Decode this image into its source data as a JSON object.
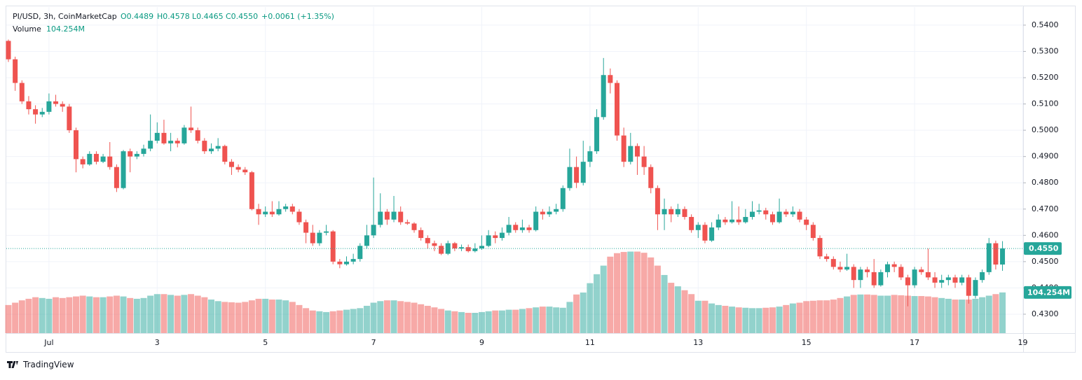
{
  "chart_data": {
    "type": "candlestick",
    "symbol": "PI/USD, 3h, CoinMarketCap",
    "legend_open": "O0.4489",
    "legend_high": "H0.4578",
    "legend_low": "L0.4465",
    "legend_close": "C0.4550",
    "legend_change": "+0.0061 (+1.35%)",
    "volume_title": "Volume",
    "volume_label": "104.254M",
    "price_label": "0.4550",
    "brand": "TradingView",
    "up_color": "#26a69a",
    "down_color": "#ef5350",
    "ylim": [
      0.4228,
      0.5469
    ],
    "yticks": [
      {
        "value": 0.43,
        "label": "0.4300"
      },
      {
        "value": 0.44,
        "label": "0.4400"
      },
      {
        "value": 0.45,
        "label": "0.4500"
      },
      {
        "value": 0.46,
        "label": "0.4600"
      },
      {
        "value": 0.47,
        "label": "0.4700"
      },
      {
        "value": 0.48,
        "label": "0.4800"
      },
      {
        "value": 0.49,
        "label": "0.4900"
      },
      {
        "value": 0.5,
        "label": "0.5000"
      },
      {
        "value": 0.51,
        "label": "0.5100"
      },
      {
        "value": 0.52,
        "label": "0.5200"
      },
      {
        "value": 0.53,
        "label": "0.5300"
      },
      {
        "value": 0.54,
        "label": "0.5400"
      }
    ],
    "x_labels": [
      "Jul",
      "3",
      "5",
      "7",
      "9",
      "11",
      "13",
      "15",
      "17",
      "19"
    ],
    "grid": true,
    "ohlc": [
      [
        0.534,
        0.5345,
        0.526,
        0.527
      ],
      [
        0.527,
        0.528,
        0.515,
        0.518
      ],
      [
        0.518,
        0.519,
        0.51,
        0.511
      ],
      [
        0.511,
        0.513,
        0.506,
        0.508
      ],
      [
        0.508,
        0.5095,
        0.5025,
        0.506
      ],
      [
        0.506,
        0.5085,
        0.505,
        0.507
      ],
      [
        0.507,
        0.514,
        0.506,
        0.511
      ],
      [
        0.511,
        0.5135,
        0.509,
        0.51
      ],
      [
        0.51,
        0.511,
        0.507,
        0.509
      ],
      [
        0.509,
        0.51,
        0.499,
        0.5
      ],
      [
        0.5,
        0.501,
        0.484,
        0.489
      ],
      [
        0.489,
        0.49,
        0.4855,
        0.487
      ],
      [
        0.487,
        0.492,
        0.4865,
        0.491
      ],
      [
        0.491,
        0.492,
        0.487,
        0.488
      ],
      [
        0.488,
        0.491,
        0.4875,
        0.49
      ],
      [
        0.49,
        0.4955,
        0.485,
        0.486
      ],
      [
        0.486,
        0.487,
        0.4765,
        0.478
      ],
      [
        0.478,
        0.4925,
        0.4775,
        0.492
      ],
      [
        0.492,
        0.493,
        0.484,
        0.49
      ],
      [
        0.49,
        0.492,
        0.489,
        0.491
      ],
      [
        0.491,
        0.4945,
        0.49,
        0.493
      ],
      [
        0.493,
        0.506,
        0.492,
        0.496
      ],
      [
        0.496,
        0.503,
        0.495,
        0.499
      ],
      [
        0.499,
        0.504,
        0.4945,
        0.495
      ],
      [
        0.495,
        0.499,
        0.492,
        0.496
      ],
      [
        0.496,
        0.497,
        0.4935,
        0.495
      ],
      [
        0.495,
        0.502,
        0.4945,
        0.501
      ],
      [
        0.501,
        0.509,
        0.499,
        0.5
      ],
      [
        0.5,
        0.501,
        0.495,
        0.496
      ],
      [
        0.496,
        0.497,
        0.491,
        0.492
      ],
      [
        0.492,
        0.495,
        0.491,
        0.493
      ],
      [
        0.493,
        0.497,
        0.492,
        0.494
      ],
      [
        0.494,
        0.4945,
        0.487,
        0.488
      ],
      [
        0.488,
        0.489,
        0.483,
        0.486
      ],
      [
        0.486,
        0.487,
        0.484,
        0.485
      ],
      [
        0.485,
        0.486,
        0.483,
        0.484
      ],
      [
        0.484,
        0.4845,
        0.4695,
        0.47
      ],
      [
        0.47,
        0.472,
        0.464,
        0.468
      ],
      [
        0.468,
        0.471,
        0.467,
        0.469
      ],
      [
        0.469,
        0.473,
        0.467,
        0.468
      ],
      [
        0.468,
        0.473,
        0.4675,
        0.47
      ],
      [
        0.47,
        0.472,
        0.469,
        0.471
      ],
      [
        0.471,
        0.472,
        0.468,
        0.469
      ],
      [
        0.469,
        0.47,
        0.464,
        0.465
      ],
      [
        0.465,
        0.466,
        0.457,
        0.461
      ],
      [
        0.461,
        0.464,
        0.456,
        0.457
      ],
      [
        0.457,
        0.462,
        0.456,
        0.461
      ],
      [
        0.461,
        0.464,
        0.46,
        0.4615
      ],
      [
        0.4615,
        0.462,
        0.449,
        0.45
      ],
      [
        0.45,
        0.451,
        0.4475,
        0.449
      ],
      [
        0.449,
        0.452,
        0.4485,
        0.45
      ],
      [
        0.45,
        0.453,
        0.449,
        0.451
      ],
      [
        0.451,
        0.457,
        0.45,
        0.456
      ],
      [
        0.456,
        0.464,
        0.455,
        0.46
      ],
      [
        0.46,
        0.482,
        0.459,
        0.464
      ],
      [
        0.464,
        0.476,
        0.463,
        0.469
      ],
      [
        0.469,
        0.47,
        0.464,
        0.466
      ],
      [
        0.466,
        0.475,
        0.465,
        0.469
      ],
      [
        0.469,
        0.471,
        0.464,
        0.465
      ],
      [
        0.465,
        0.466,
        0.464,
        0.4645
      ],
      [
        0.4645,
        0.465,
        0.461,
        0.462
      ],
      [
        0.462,
        0.463,
        0.458,
        0.459
      ],
      [
        0.459,
        0.46,
        0.455,
        0.457
      ],
      [
        0.457,
        0.458,
        0.454,
        0.456
      ],
      [
        0.456,
        0.457,
        0.4525,
        0.453
      ],
      [
        0.453,
        0.458,
        0.4525,
        0.457
      ],
      [
        0.457,
        0.4575,
        0.454,
        0.455
      ],
      [
        0.455,
        0.4565,
        0.454,
        0.4555
      ],
      [
        0.4555,
        0.4565,
        0.4535,
        0.454
      ],
      [
        0.454,
        0.457,
        0.4535,
        0.455
      ],
      [
        0.455,
        0.46,
        0.4545,
        0.456
      ],
      [
        0.456,
        0.462,
        0.4555,
        0.46
      ],
      [
        0.46,
        0.4615,
        0.457,
        0.459
      ],
      [
        0.459,
        0.463,
        0.458,
        0.461
      ],
      [
        0.461,
        0.467,
        0.46,
        0.464
      ],
      [
        0.464,
        0.465,
        0.461,
        0.462
      ],
      [
        0.462,
        0.466,
        0.461,
        0.463
      ],
      [
        0.463,
        0.464,
        0.461,
        0.462
      ],
      [
        0.462,
        0.471,
        0.4615,
        0.469
      ],
      [
        0.469,
        0.47,
        0.466,
        0.468
      ],
      [
        0.468,
        0.471,
        0.467,
        0.469
      ],
      [
        0.469,
        0.472,
        0.468,
        0.47
      ],
      [
        0.47,
        0.479,
        0.469,
        0.478
      ],
      [
        0.478,
        0.493,
        0.477,
        0.486
      ],
      [
        0.486,
        0.49,
        0.478,
        0.48
      ],
      [
        0.48,
        0.496,
        0.479,
        0.488
      ],
      [
        0.488,
        0.494,
        0.486,
        0.492
      ],
      [
        0.492,
        0.508,
        0.491,
        0.505
      ],
      [
        0.505,
        0.5275,
        0.504,
        0.521
      ],
      [
        0.521,
        0.5235,
        0.514,
        0.518
      ],
      [
        0.518,
        0.519,
        0.496,
        0.498
      ],
      [
        0.498,
        0.501,
        0.486,
        0.488
      ],
      [
        0.488,
        0.499,
        0.487,
        0.494
      ],
      [
        0.494,
        0.495,
        0.483,
        0.49
      ],
      [
        0.49,
        0.494,
        0.483,
        0.486
      ],
      [
        0.486,
        0.487,
        0.476,
        0.478
      ],
      [
        0.478,
        0.479,
        0.462,
        0.468
      ],
      [
        0.468,
        0.474,
        0.462,
        0.47
      ],
      [
        0.47,
        0.471,
        0.465,
        0.468
      ],
      [
        0.468,
        0.472,
        0.467,
        0.47
      ],
      [
        0.47,
        0.471,
        0.466,
        0.467
      ],
      [
        0.467,
        0.468,
        0.461,
        0.462
      ],
      [
        0.462,
        0.465,
        0.459,
        0.464
      ],
      [
        0.464,
        0.465,
        0.457,
        0.458
      ],
      [
        0.458,
        0.465,
        0.4575,
        0.463
      ],
      [
        0.463,
        0.468,
        0.462,
        0.466
      ],
      [
        0.466,
        0.467,
        0.464,
        0.465
      ],
      [
        0.465,
        0.473,
        0.4645,
        0.466
      ],
      [
        0.466,
        0.471,
        0.464,
        0.465
      ],
      [
        0.465,
        0.47,
        0.4645,
        0.467
      ],
      [
        0.467,
        0.473,
        0.466,
        0.469
      ],
      [
        0.469,
        0.472,
        0.468,
        0.4695
      ],
      [
        0.4695,
        0.4705,
        0.466,
        0.468
      ],
      [
        0.468,
        0.469,
        0.464,
        0.465
      ],
      [
        0.465,
        0.474,
        0.4645,
        0.469
      ],
      [
        0.469,
        0.47,
        0.467,
        0.468
      ],
      [
        0.468,
        0.471,
        0.467,
        0.469
      ],
      [
        0.469,
        0.47,
        0.465,
        0.466
      ],
      [
        0.466,
        0.467,
        0.462,
        0.464
      ],
      [
        0.464,
        0.465,
        0.458,
        0.459
      ],
      [
        0.459,
        0.46,
        0.451,
        0.452
      ],
      [
        0.452,
        0.453,
        0.45,
        0.451
      ],
      [
        0.451,
        0.452,
        0.447,
        0.448
      ],
      [
        0.448,
        0.45,
        0.446,
        0.447
      ],
      [
        0.447,
        0.453,
        0.4465,
        0.448
      ],
      [
        0.448,
        0.449,
        0.44,
        0.443
      ],
      [
        0.443,
        0.448,
        0.44,
        0.447
      ],
      [
        0.447,
        0.448,
        0.444,
        0.446
      ],
      [
        0.446,
        0.451,
        0.44,
        0.441
      ],
      [
        0.441,
        0.447,
        0.4405,
        0.446
      ],
      [
        0.446,
        0.45,
        0.444,
        0.449
      ],
      [
        0.449,
        0.45,
        0.446,
        0.448
      ],
      [
        0.448,
        0.449,
        0.443,
        0.444
      ],
      [
        0.444,
        0.445,
        0.433,
        0.441
      ],
      [
        0.441,
        0.448,
        0.44,
        0.447
      ],
      [
        0.447,
        0.448,
        0.445,
        0.446
      ],
      [
        0.446,
        0.455,
        0.443,
        0.444
      ],
      [
        0.444,
        0.446,
        0.44,
        0.442
      ],
      [
        0.442,
        0.445,
        0.44,
        0.443
      ],
      [
        0.443,
        0.445,
        0.441,
        0.444
      ],
      [
        0.444,
        0.445,
        0.44,
        0.442
      ],
      [
        0.442,
        0.445,
        0.441,
        0.444
      ],
      [
        0.444,
        0.445,
        0.434,
        0.437
      ],
      [
        0.437,
        0.444,
        0.436,
        0.443
      ],
      [
        0.443,
        0.447,
        0.442,
        0.446
      ],
      [
        0.446,
        0.459,
        0.445,
        0.457
      ],
      [
        0.457,
        0.458,
        0.447,
        0.4489
      ],
      [
        0.4489,
        0.4578,
        0.4465,
        0.455
      ]
    ],
    "volume": [
      72,
      78,
      84,
      88,
      92,
      90,
      88,
      92,
      90,
      92,
      94,
      96,
      94,
      92,
      92,
      94,
      96,
      94,
      90,
      88,
      90,
      96,
      100,
      100,
      98,
      96,
      98,
      100,
      96,
      92,
      86,
      82,
      80,
      79,
      78,
      80,
      84,
      88,
      88,
      86,
      86,
      84,
      80,
      72,
      64,
      58,
      56,
      54,
      56,
      58,
      60,
      62,
      64,
      70,
      78,
      82,
      84,
      84,
      82,
      80,
      78,
      74,
      70,
      66,
      62,
      58,
      56,
      54,
      52,
      52,
      54,
      56,
      58,
      58,
      60,
      60,
      62,
      64,
      66,
      68,
      68,
      66,
      65,
      80,
      99,
      104,
      128,
      151,
      173,
      196,
      205,
      208,
      209,
      209,
      206,
      194,
      173,
      149,
      129,
      120,
      110,
      100,
      83,
      83,
      76,
      72,
      70,
      68,
      66,
      65,
      64,
      64,
      65,
      66,
      68,
      72,
      76,
      78,
      82,
      83,
      84,
      84,
      86,
      90,
      94,
      98,
      99,
      99,
      98,
      96,
      96,
      98,
      97,
      96,
      95,
      95,
      94,
      92,
      90,
      88,
      86,
      86,
      86,
      88,
      92,
      96,
      100,
      104.254
    ]
  }
}
